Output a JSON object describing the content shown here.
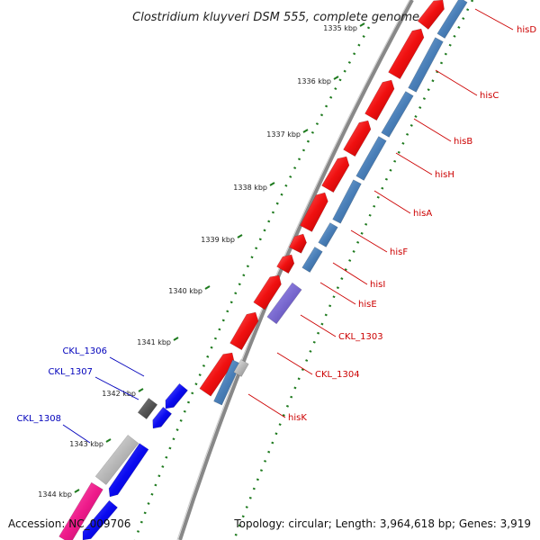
{
  "title": "Clostridium kluyveri DSM 555, complete genome",
  "accession": "Accession: NC_009706",
  "topology": "Topology: circular; Length: 3,964,618 bp; Genes: 3,919",
  "colors": {
    "forward_cds": "#f01010",
    "reverse_cds": "#0a0af0",
    "hypothetical": "#999999",
    "dark": "#555555",
    "rna": "#4a7fb8",
    "purple": "#7a6ad0",
    "pink": "#ee1a8a",
    "red_label": "#cc0000",
    "blue_label": "#0000bb",
    "gc_positive": "#1e7a1e",
    "backbone": "#888888"
  },
  "ticks": [
    {
      "label": "1335 kbp"
    },
    {
      "label": "1336 kbp"
    },
    {
      "label": "1337 kbp"
    },
    {
      "label": "1338 kbp"
    },
    {
      "label": "1339 kbp"
    },
    {
      "label": "1340 kbp"
    },
    {
      "label": "1341 kbp"
    },
    {
      "label": "1342 kbp"
    },
    {
      "label": "1343 kbp"
    },
    {
      "label": "1344 kbp"
    }
  ],
  "gene_labels": [
    {
      "name": "hisD",
      "strand": "forward"
    },
    {
      "name": "hisC",
      "strand": "forward"
    },
    {
      "name": "hisB",
      "strand": "forward"
    },
    {
      "name": "hisH",
      "strand": "forward"
    },
    {
      "name": "hisA",
      "strand": "forward"
    },
    {
      "name": "hisF",
      "strand": "forward"
    },
    {
      "name": "hisI",
      "strand": "forward"
    },
    {
      "name": "hisE",
      "strand": "forward"
    },
    {
      "name": "CKL_1303",
      "strand": "forward"
    },
    {
      "name": "CKL_1304",
      "strand": "forward"
    },
    {
      "name": "hisK",
      "strand": "forward"
    },
    {
      "name": "CKL_1306",
      "strand": "reverse"
    },
    {
      "name": "CKL_1307",
      "strand": "reverse"
    },
    {
      "name": "CKL_1308",
      "strand": "reverse"
    }
  ]
}
